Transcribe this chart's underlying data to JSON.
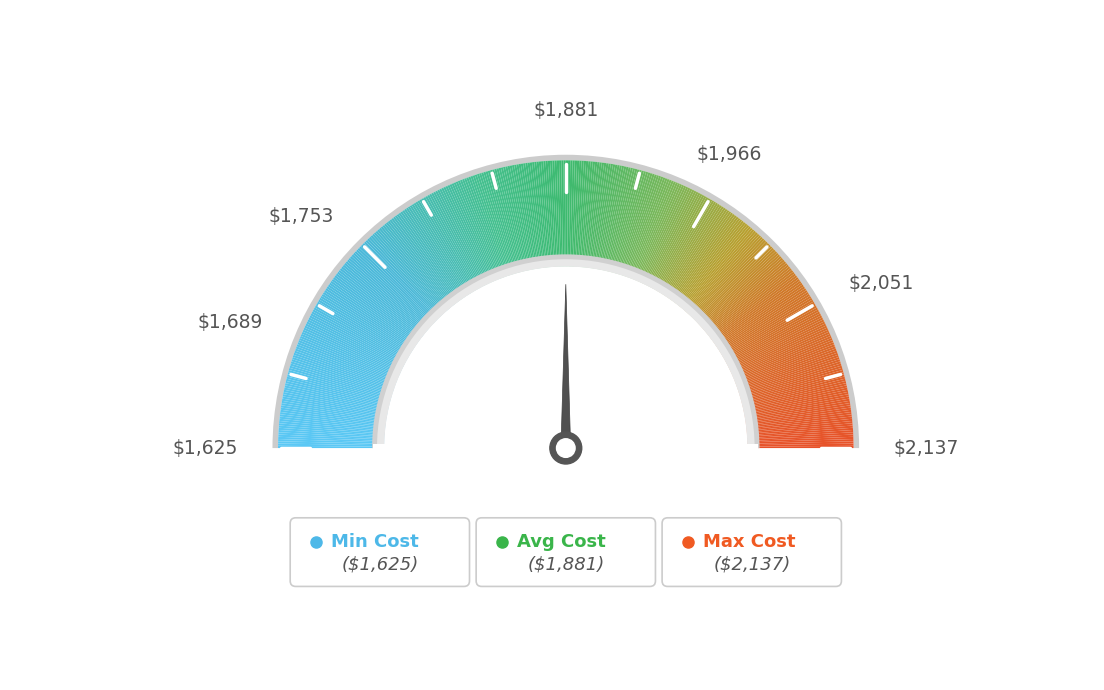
{
  "min_val": 1625,
  "max_val": 2137,
  "avg_val": 1881,
  "tick_labels": [
    "$1,625",
    "$1,689",
    "$1,753",
    "$1,881",
    "$1,966",
    "$2,051",
    "$2,137"
  ],
  "tick_values": [
    1625,
    1689,
    1753,
    1881,
    1966,
    2051,
    2137
  ],
  "legend_items": [
    {
      "label": "Min Cost",
      "value": "($1,625)",
      "color": "#4db8e8"
    },
    {
      "label": "Avg Cost",
      "value": "($1,881)",
      "color": "#3ab54a"
    },
    {
      "label": "Max Cost",
      "value": "($2,137)",
      "color": "#f05a22"
    }
  ],
  "background_color": "#ffffff",
  "needle_value": 1881,
  "color_stops": [
    [
      0.0,
      "#5bc8f5"
    ],
    [
      0.25,
      "#4ab8d8"
    ],
    [
      0.4,
      "#45c090"
    ],
    [
      0.5,
      "#3dba6f"
    ],
    [
      0.62,
      "#7ab85a"
    ],
    [
      0.72,
      "#b8a030"
    ],
    [
      0.8,
      "#d07828"
    ],
    [
      1.0,
      "#e8522a"
    ]
  ]
}
